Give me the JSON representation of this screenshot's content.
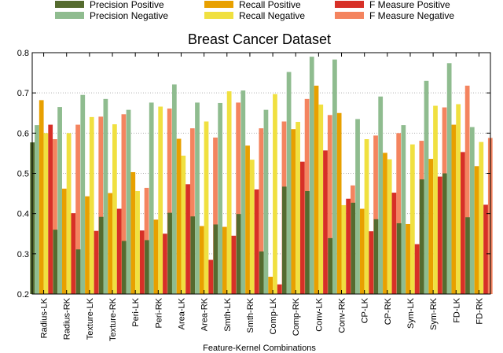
{
  "chart_data": {
    "type": "bar",
    "title": "Breast Cancer Dataset",
    "xlabel": "Feature-Kernel Combinations",
    "ylabel": "",
    "ylim": [
      0.2,
      0.8
    ],
    "yticks": [
      "0.2",
      "0.3",
      "0.4",
      "0.5",
      "0.6",
      "0.7",
      "0.8"
    ],
    "grid": true,
    "legend_position": "top",
    "categories": [
      "Radius-LK",
      "Radius-RK",
      "Texture-LK",
      "Texture-RK",
      "Peri-LK",
      "Peri-RK",
      "Area-LK",
      "Area-RK",
      "Smth-LK",
      "Smth-RK",
      "Comp-LK",
      "Comp-RK",
      "Conv-LK",
      "Conv-RK",
      "CP-LK",
      "CP-RK",
      "Sym-LK",
      "Sym-RK",
      "FD-LK",
      "FD-RK"
    ],
    "series": [
      {
        "name": "Precision Positive",
        "color": "#556b2f",
        "values": [
          0.577,
          0.36,
          0.311,
          0.392,
          0.332,
          0.334,
          0.402,
          0.393,
          0.373,
          0.399,
          0.306,
          0.467,
          0.456,
          0.339,
          0.427,
          0.386,
          0.376,
          0.485,
          0.5,
          0.391
        ]
      },
      {
        "name": "Precision Negative",
        "color": "#8fbc8f",
        "values": [
          0.62,
          0.665,
          0.695,
          0.685,
          0.658,
          0.676,
          0.721,
          0.676,
          0.675,
          0.706,
          0.658,
          0.752,
          0.79,
          0.783,
          0.635,
          0.691,
          0.62,
          0.73,
          0.774,
          0.615
        ]
      },
      {
        "name": "Recall Positive",
        "color": "#e8a000",
        "values": [
          0.682,
          0.462,
          0.443,
          0.451,
          0.503,
          0.385,
          0.586,
          0.369,
          0.367,
          0.569,
          0.243,
          0.61,
          0.718,
          0.65,
          0.412,
          0.551,
          0.374,
          0.536,
          0.621,
          0.518
        ]
      },
      {
        "name": "Recall Negative",
        "color": "#f0e040",
        "values": [
          0.6,
          0.6,
          0.64,
          0.622,
          0.456,
          0.666,
          0.544,
          0.629,
          0.704,
          0.534,
          0.697,
          0.628,
          0.671,
          0.421,
          0.585,
          0.535,
          0.572,
          0.668,
          0.672,
          0.578
        ]
      },
      {
        "name": "F Measure Positive",
        "color": "#d73027",
        "values": [
          0.621,
          0.401,
          0.357,
          0.412,
          0.358,
          0.35,
          0.473,
          0.285,
          0.345,
          0.46,
          0.224,
          0.529,
          0.557,
          0.437,
          0.356,
          0.452,
          0.324,
          0.492,
          0.553,
          0.422
        ]
      },
      {
        "name": "F Measure Negative",
        "color": "#f4845f",
        "values": [
          0.585,
          0.621,
          0.641,
          0.647,
          0.464,
          0.661,
          0.612,
          0.589,
          0.676,
          0.612,
          0.629,
          0.685,
          0.645,
          0.47,
          0.594,
          0.6,
          0.581,
          0.664,
          0.718,
          0.588
        ]
      }
    ]
  }
}
